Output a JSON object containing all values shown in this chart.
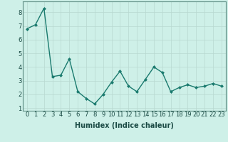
{
  "x": [
    0,
    1,
    2,
    3,
    4,
    5,
    6,
    7,
    8,
    9,
    10,
    11,
    12,
    13,
    14,
    15,
    16,
    17,
    18,
    19,
    20,
    21,
    22,
    23
  ],
  "y": [
    6.8,
    7.1,
    8.3,
    3.3,
    3.4,
    4.6,
    2.2,
    1.7,
    1.3,
    2.0,
    2.9,
    3.7,
    2.6,
    2.2,
    3.1,
    4.0,
    3.6,
    2.2,
    2.5,
    2.7,
    2.5,
    2.6,
    2.8,
    2.6
  ],
  "xlabel": "Humidex (Indice chaleur)",
  "ylim": [
    0.8,
    8.8
  ],
  "xlim": [
    -0.5,
    23.5
  ],
  "line_color": "#1a7a6e",
  "bg_color": "#cef0e8",
  "grid_color": "#b8d8d0",
  "yticks": [
    1,
    2,
    3,
    4,
    5,
    6,
    7,
    8
  ],
  "xticks": [
    0,
    1,
    2,
    3,
    4,
    5,
    6,
    7,
    8,
    9,
    10,
    11,
    12,
    13,
    14,
    15,
    16,
    17,
    18,
    19,
    20,
    21,
    22,
    23
  ],
  "marker": "D",
  "marker_size": 2.0,
  "line_width": 1.0,
  "tick_color": "#1a4a44",
  "label_fontsize": 6.0,
  "xlabel_fontsize": 7.0,
  "xlabel_fontweight": "bold"
}
